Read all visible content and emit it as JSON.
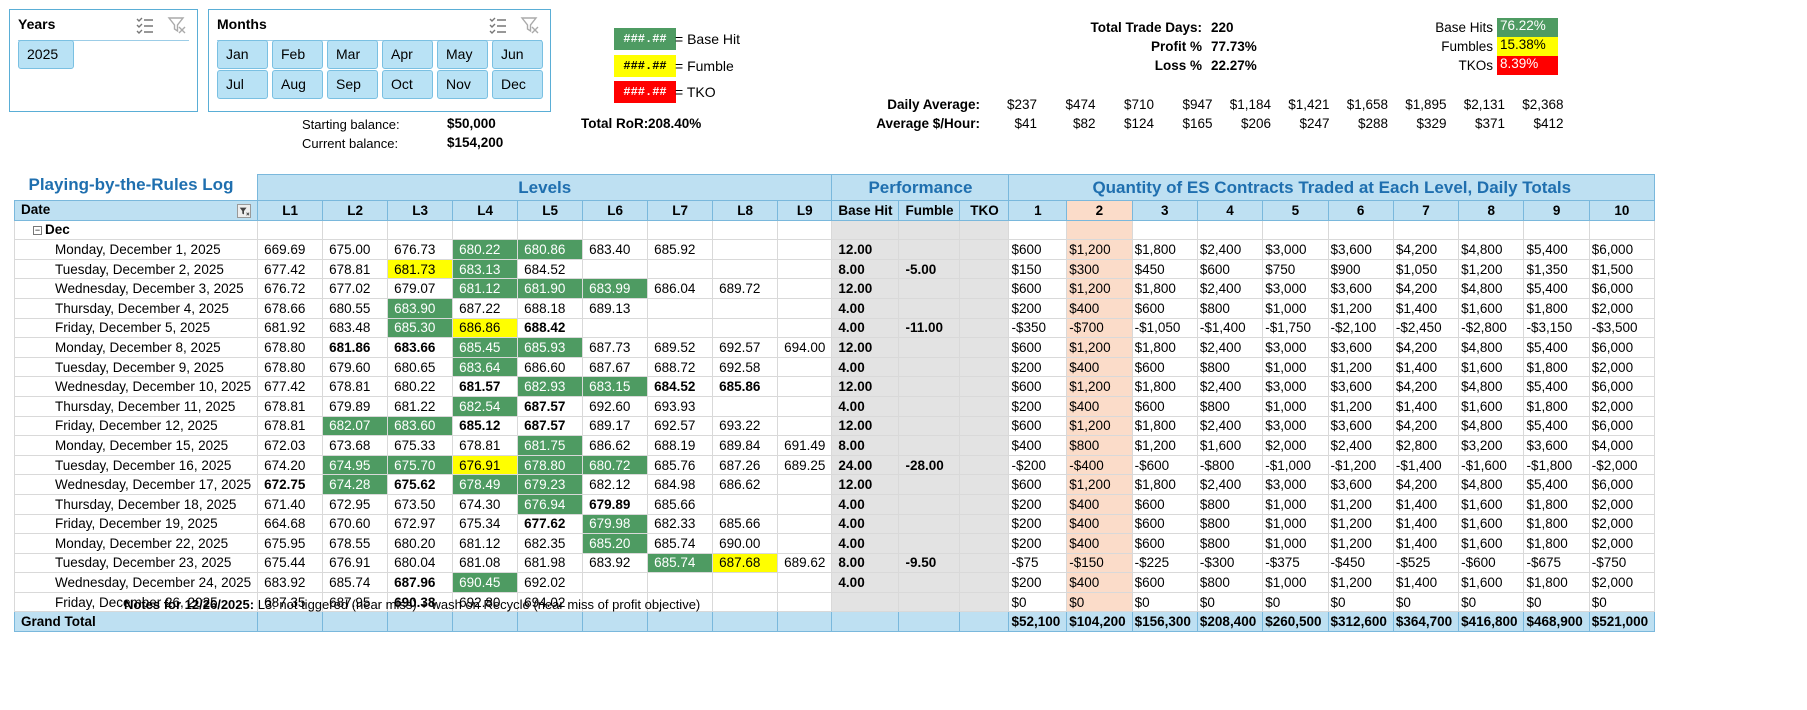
{
  "slicers": {
    "years": {
      "title": "Years",
      "items": [
        "2025"
      ]
    },
    "months": {
      "title": "Months",
      "items": [
        "Jan",
        "Feb",
        "Mar",
        "Apr",
        "May",
        "Jun",
        "Jul",
        "Aug",
        "Sep",
        "Oct",
        "Nov",
        "Dec"
      ]
    }
  },
  "legend": [
    {
      "sample": "###.##",
      "label": "= Base Hit",
      "color": "#4e9b62"
    },
    {
      "sample": "###.##",
      "label": "= Fumble",
      "color": "#ffff00"
    },
    {
      "sample": "###.##",
      "label": "= TKO",
      "color": "#ff0000"
    }
  ],
  "summary": {
    "total_trade_days_label": "Total Trade Days:",
    "total_trade_days": "220",
    "profit_label": "Profit %",
    "profit": "77.73%",
    "loss_label": "Loss %",
    "loss": "22.27%",
    "base_hits_label": "Base Hits",
    "base_hits": "76.22%",
    "fumbles_label": "Fumbles",
    "fumbles": "15.38%",
    "tkos_label": "TKOs",
    "tkos": "8.39%",
    "daily_average_label": "Daily Average:",
    "daily_average": [
      "$237",
      "$474",
      "$710",
      "$947",
      "$1,184",
      "$1,421",
      "$1,658",
      "$1,895",
      "$2,131",
      "$2,368"
    ],
    "avg_hour_label": "Average $/Hour:",
    "avg_hour": [
      "$41",
      "$82",
      "$124",
      "$165",
      "$206",
      "$247",
      "$288",
      "$329",
      "$371",
      "$412"
    ],
    "starting_balance_label": "Starting balance:",
    "starting_balance": "$50,000",
    "current_balance_label": "Current balance:",
    "current_balance": "$154,200",
    "total_ror_label": "Total RoR:",
    "total_ror": "208.40%"
  },
  "table": {
    "log_title": "Playing-by-the-Rules Log",
    "levels_title": "Levels",
    "performance_title": "Performance",
    "quantity_title": "Quantity of ES Contracts Traded at Each Level, Daily Totals",
    "date_header": "Date",
    "level_headers": [
      "L1",
      "L2",
      "L3",
      "L4",
      "L5",
      "L6",
      "L7",
      "L8",
      "L9"
    ],
    "perf_headers": [
      "Base Hit",
      "Fumble",
      "TKO"
    ],
    "qty_headers": [
      "1",
      "2",
      "3",
      "4",
      "5",
      "6",
      "7",
      "8",
      "9",
      "10"
    ],
    "group_label": "Dec",
    "rows": [
      {
        "date": "Monday, December 1, 2025",
        "levels": [
          "669.69",
          "675.00",
          "676.73",
          "680.22",
          "680.86",
          "683.40",
          "685.92",
          "",
          ""
        ],
        "styles": [
          "",
          "",
          "",
          "bh",
          "bh",
          "",
          "",
          "",
          ""
        ],
        "bh": "12.00",
        "fm": "",
        "tko": "",
        "qty": [
          "$600",
          "$1,200",
          "$1,800",
          "$2,400",
          "$3,000",
          "$3,600",
          "$4,200",
          "$4,800",
          "$5,400",
          "$6,000"
        ]
      },
      {
        "date": "Tuesday, December 2, 2025",
        "levels": [
          "677.42",
          "678.81",
          "681.73",
          "683.13",
          "684.52",
          "",
          "",
          "",
          ""
        ],
        "styles": [
          "",
          "",
          "fm",
          "bh",
          "",
          "",
          "",
          "",
          ""
        ],
        "bh": "8.00",
        "fm": "-5.00",
        "tko": "",
        "qty": [
          "$150",
          "$300",
          "$450",
          "$600",
          "$750",
          "$900",
          "$1,050",
          "$1,200",
          "$1,350",
          "$1,500"
        ]
      },
      {
        "date": "Wednesday, December 3, 2025",
        "levels": [
          "676.72",
          "677.02",
          "679.07",
          "681.12",
          "681.90",
          "683.99",
          "686.04",
          "689.72",
          ""
        ],
        "styles": [
          "",
          "",
          "",
          "bh",
          "bh",
          "bh",
          "",
          "",
          ""
        ],
        "bh": "12.00",
        "fm": "",
        "tko": "",
        "qty": [
          "$600",
          "$1,200",
          "$1,800",
          "$2,400",
          "$3,000",
          "$3,600",
          "$4,200",
          "$4,800",
          "$5,400",
          "$6,000"
        ]
      },
      {
        "date": "Thursday, December 4, 2025",
        "levels": [
          "678.66",
          "680.55",
          "683.90",
          "687.22",
          "688.18",
          "689.13",
          "",
          "",
          ""
        ],
        "styles": [
          "",
          "",
          "bh",
          "",
          "",
          "",
          "",
          "",
          ""
        ],
        "bh": "4.00",
        "fm": "",
        "tko": "",
        "qty": [
          "$200",
          "$400",
          "$600",
          "$800",
          "$1,000",
          "$1,200",
          "$1,400",
          "$1,600",
          "$1,800",
          "$2,000"
        ]
      },
      {
        "date": "Friday, December 5, 2025",
        "levels": [
          "681.92",
          "683.48",
          "685.30",
          "686.86",
          "688.42",
          "",
          "",
          "",
          ""
        ],
        "styles": [
          "",
          "",
          "bh",
          "fm",
          "b",
          "",
          "",
          "",
          ""
        ],
        "bh": "4.00",
        "fm": "-11.00",
        "tko": "",
        "qty": [
          "-$350",
          "-$700",
          "-$1,050",
          "-$1,400",
          "-$1,750",
          "-$2,100",
          "-$2,450",
          "-$2,800",
          "-$3,150",
          "-$3,500"
        ]
      },
      {
        "date": "Monday, December 8, 2025",
        "levels": [
          "678.80",
          "681.86",
          "683.66",
          "685.45",
          "685.93",
          "687.73",
          "689.52",
          "692.57",
          "694.00"
        ],
        "styles": [
          "",
          "b",
          "b",
          "bh",
          "bh",
          "",
          "",
          "",
          ""
        ],
        "bh": "12.00",
        "fm": "",
        "tko": "",
        "qty": [
          "$600",
          "$1,200",
          "$1,800",
          "$2,400",
          "$3,000",
          "$3,600",
          "$4,200",
          "$4,800",
          "$5,400",
          "$6,000"
        ]
      },
      {
        "date": "Tuesday, December 9, 2025",
        "levels": [
          "678.80",
          "679.60",
          "680.65",
          "683.64",
          "686.60",
          "687.67",
          "688.72",
          "692.58",
          ""
        ],
        "styles": [
          "",
          "",
          "",
          "bh",
          "",
          "",
          "",
          "",
          ""
        ],
        "bh": "4.00",
        "fm": "",
        "tko": "",
        "qty": [
          "$200",
          "$400",
          "$600",
          "$800",
          "$1,000",
          "$1,200",
          "$1,400",
          "$1,600",
          "$1,800",
          "$2,000"
        ]
      },
      {
        "date": "Wednesday, December 10, 2025",
        "levels": [
          "677.42",
          "678.81",
          "680.22",
          "681.57",
          "682.93",
          "683.15",
          "684.52",
          "685.86",
          ""
        ],
        "styles": [
          "",
          "",
          "",
          "b",
          "bh",
          "bh",
          "b",
          "b",
          ""
        ],
        "bh": "12.00",
        "fm": "",
        "tko": "",
        "qty": [
          "$600",
          "$1,200",
          "$1,800",
          "$2,400",
          "$3,000",
          "$3,600",
          "$4,200",
          "$4,800",
          "$5,400",
          "$6,000"
        ]
      },
      {
        "date": "Thursday, December 11, 2025",
        "levels": [
          "678.81",
          "679.89",
          "681.22",
          "682.54",
          "687.57",
          "692.60",
          "693.93",
          "",
          ""
        ],
        "styles": [
          "",
          "",
          "",
          "bh",
          "b",
          "",
          "",
          "",
          ""
        ],
        "bh": "4.00",
        "fm": "",
        "tko": "",
        "qty": [
          "$200",
          "$400",
          "$600",
          "$800",
          "$1,000",
          "$1,200",
          "$1,400",
          "$1,600",
          "$1,800",
          "$2,000"
        ]
      },
      {
        "date": "Friday, December 12, 2025",
        "levels": [
          "678.81",
          "682.07",
          "683.60",
          "685.12",
          "687.57",
          "689.17",
          "692.57",
          "693.22",
          ""
        ],
        "styles": [
          "",
          "bh",
          "bh",
          "b",
          "b",
          "",
          "",
          "",
          ""
        ],
        "bh": "12.00",
        "fm": "",
        "tko": "",
        "qty": [
          "$600",
          "$1,200",
          "$1,800",
          "$2,400",
          "$3,000",
          "$3,600",
          "$4,200",
          "$4,800",
          "$5,400",
          "$6,000"
        ]
      },
      {
        "date": "Monday, December 15, 2025",
        "levels": [
          "672.03",
          "673.68",
          "675.33",
          "678.81",
          "681.75",
          "686.62",
          "688.19",
          "689.84",
          "691.49"
        ],
        "styles": [
          "",
          "",
          "",
          "",
          "bh",
          "",
          "",
          "",
          ""
        ],
        "bh": "8.00",
        "fm": "",
        "tko": "",
        "qty": [
          "$400",
          "$800",
          "$1,200",
          "$1,600",
          "$2,000",
          "$2,400",
          "$2,800",
          "$3,200",
          "$3,600",
          "$4,000"
        ]
      },
      {
        "date": "Tuesday, December 16, 2025",
        "levels": [
          "674.20",
          "674.95",
          "675.70",
          "676.91",
          "678.80",
          "680.72",
          "685.76",
          "687.26",
          "689.25"
        ],
        "styles": [
          "",
          "bh",
          "bh",
          "fm",
          "bh",
          "bh",
          "",
          "",
          ""
        ],
        "bh": "24.00",
        "fm": "-28.00",
        "tko": "",
        "qty": [
          "-$200",
          "-$400",
          "-$600",
          "-$800",
          "-$1,000",
          "-$1,200",
          "-$1,400",
          "-$1,600",
          "-$1,800",
          "-$2,000"
        ]
      },
      {
        "date": "Wednesday, December 17, 2025",
        "levels": [
          "672.75",
          "674.28",
          "675.62",
          "678.49",
          "679.23",
          "682.12",
          "684.98",
          "686.62",
          ""
        ],
        "styles": [
          "b",
          "bh",
          "b",
          "bh",
          "bh",
          "",
          "",
          "",
          ""
        ],
        "bh": "12.00",
        "fm": "",
        "tko": "",
        "qty": [
          "$600",
          "$1,200",
          "$1,800",
          "$2,400",
          "$3,000",
          "$3,600",
          "$4,200",
          "$4,800",
          "$5,400",
          "$6,000"
        ]
      },
      {
        "date": "Thursday, December 18, 2025",
        "levels": [
          "671.40",
          "672.95",
          "673.50",
          "674.30",
          "676.94",
          "679.89",
          "685.66",
          "",
          ""
        ],
        "styles": [
          "",
          "",
          "",
          "",
          "bh",
          "b",
          "",
          "",
          ""
        ],
        "bh": "4.00",
        "fm": "",
        "tko": "",
        "qty": [
          "$200",
          "$400",
          "$600",
          "$800",
          "$1,000",
          "$1,200",
          "$1,400",
          "$1,600",
          "$1,800",
          "$2,000"
        ]
      },
      {
        "date": "Friday, December 19, 2025",
        "levels": [
          "664.68",
          "670.60",
          "672.97",
          "675.34",
          "677.62",
          "679.98",
          "682.33",
          "685.66",
          ""
        ],
        "styles": [
          "",
          "",
          "",
          "",
          "b",
          "bh",
          "",
          "",
          ""
        ],
        "bh": "4.00",
        "fm": "",
        "tko": "",
        "qty": [
          "$200",
          "$400",
          "$600",
          "$800",
          "$1,000",
          "$1,200",
          "$1,400",
          "$1,600",
          "$1,800",
          "$2,000"
        ]
      },
      {
        "date": "Monday, December 22, 2025",
        "levels": [
          "675.95",
          "678.55",
          "680.20",
          "681.12",
          "682.35",
          "685.20",
          "685.74",
          "690.00",
          ""
        ],
        "styles": [
          "",
          "",
          "",
          "",
          "",
          "bh",
          "",
          "",
          ""
        ],
        "bh": "4.00",
        "fm": "",
        "tko": "",
        "qty": [
          "$200",
          "$400",
          "$600",
          "$800",
          "$1,000",
          "$1,200",
          "$1,400",
          "$1,600",
          "$1,800",
          "$2,000"
        ]
      },
      {
        "date": "Tuesday, December 23, 2025",
        "levels": [
          "675.44",
          "676.91",
          "680.04",
          "681.08",
          "681.98",
          "683.92",
          "685.74",
          "687.68",
          "689.62"
        ],
        "styles": [
          "",
          "",
          "",
          "",
          "",
          "",
          "bh",
          "fm",
          ""
        ],
        "bh": "8.00",
        "fm": "-9.50",
        "tko": "",
        "qty": [
          "-$75",
          "-$150",
          "-$225",
          "-$300",
          "-$375",
          "-$450",
          "-$525",
          "-$600",
          "-$675",
          "-$750"
        ]
      },
      {
        "date": "Wednesday, December 24, 2025",
        "levels": [
          "683.92",
          "685.74",
          "687.96",
          "690.45",
          "692.02",
          "",
          "",
          "",
          ""
        ],
        "styles": [
          "",
          "",
          "b",
          "bh",
          "",
          "",
          "",
          "",
          ""
        ],
        "bh": "4.00",
        "fm": "",
        "tko": "",
        "qty": [
          "$200",
          "$400",
          "$600",
          "$800",
          "$1,000",
          "$1,200",
          "$1,400",
          "$1,600",
          "$1,800",
          "$2,000"
        ]
      },
      {
        "date": "Friday, December 26, 2025",
        "levels": [
          "687.35",
          "687.95",
          "690.38",
          "692.80",
          "694.02",
          "",
          "",
          "",
          ""
        ],
        "styles": [
          "",
          "",
          "b",
          "",
          "",
          "",
          "",
          "",
          ""
        ],
        "bh": "",
        "fm": "",
        "tko": "",
        "qty": [
          "$0",
          "$0",
          "$0",
          "$0",
          "$0",
          "$0",
          "$0",
          "$0",
          "$0",
          "$0"
        ]
      }
    ],
    "grand_total_label": "Grand Total",
    "grand_totals": [
      "$52,100",
      "$104,200",
      "$156,300",
      "$208,400",
      "$260,500",
      "$312,600",
      "$364,700",
      "$416,800",
      "$468,900",
      "$521,000"
    ]
  },
  "notes": {
    "label": "Notes for 12/26/2025:",
    "text": "L3: not tiggered (near miss) + wash on Recycle (near miss of profit objective)"
  }
}
